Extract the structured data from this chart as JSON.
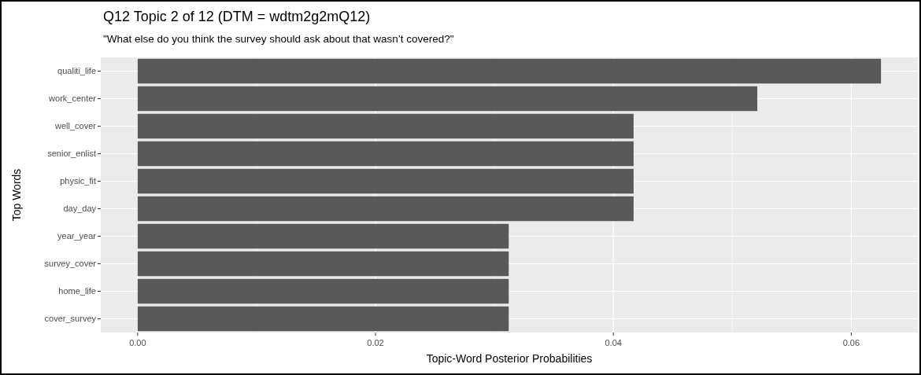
{
  "chart_data": {
    "type": "bar",
    "orientation": "horizontal",
    "title": "Q12 Topic 2 of 12 (DTM = wdtm2g2mQ12)",
    "subtitle": "\"What else do you think the survey should ask about that wasn’t covered?\"",
    "xlabel": "Topic-Word Posterior Probabilities",
    "ylabel": "Top Words",
    "categories": [
      "qualiti_life",
      "work_center",
      "well_cover",
      "senior_enlist",
      "physic_fit",
      "day_day",
      "year_year",
      "survey_cover",
      "home_life",
      "cover_survey"
    ],
    "values": [
      0.0625,
      0.0521,
      0.0417,
      0.0417,
      0.0417,
      0.0417,
      0.0312,
      0.0312,
      0.0312,
      0.0312
    ],
    "color": "#595959",
    "xlim": [
      -0.0031,
      0.0656
    ],
    "xticks": [
      {
        "value": 0,
        "label": "0.00"
      },
      {
        "value": 0.02,
        "label": "0.02"
      },
      {
        "value": 0.04,
        "label": "0.04"
      },
      {
        "value": 0.06,
        "label": "0.06"
      }
    ],
    "grid": true
  }
}
